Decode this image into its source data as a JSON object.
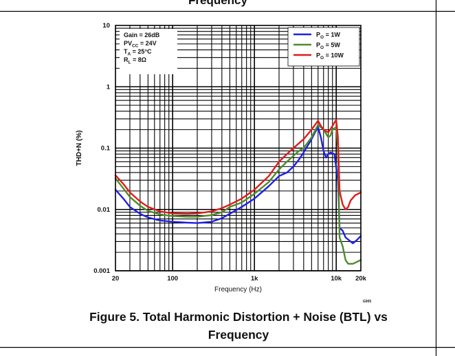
{
  "page": {
    "top_caption": "Frequency",
    "figure_caption_line1": "Figure 5. Total Harmonic Distortion + Noise (BTL) vs",
    "figure_caption_line2": "Frequency"
  },
  "chart_data": {
    "type": "line",
    "title": "",
    "xlabel": "Frequency (Hz)",
    "ylabel": "THD+N (%)",
    "xscale": "log",
    "yscale": "log",
    "xlim": [
      20,
      20000
    ],
    "ylim": [
      0.001,
      10
    ],
    "grid": true,
    "legend_position": "top-right",
    "x_ticks": [
      {
        "value": 20,
        "label": "20"
      },
      {
        "value": 100,
        "label": "100"
      },
      {
        "value": 1000,
        "label": "1k"
      },
      {
        "value": 10000,
        "label": "10k"
      },
      {
        "value": 20000,
        "label": "20k"
      }
    ],
    "y_ticks": [
      {
        "value": 0.001,
        "label": "0.001"
      },
      {
        "value": 0.01,
        "label": "0.01"
      },
      {
        "value": 0.1,
        "label": "0.1"
      },
      {
        "value": 1,
        "label": "1"
      },
      {
        "value": 10,
        "label": "10"
      }
    ],
    "conditions": [
      {
        "main": "Gain = 26dB",
        "sub": "",
        "rest": ""
      },
      {
        "main": "PV",
        "sub": "CC",
        "rest": " = 24V"
      },
      {
        "main": "T",
        "sub": "A",
        "rest": " = 25°C"
      },
      {
        "main": "R",
        "sub": "L",
        "rest": " = 8Ω"
      }
    ],
    "series": [
      {
        "name_main": "P",
        "name_sub": "O",
        "name_rest": " = 1W",
        "color": "#1f1fe6",
        "points": [
          [
            20,
            0.021
          ],
          [
            25,
            0.015
          ],
          [
            30,
            0.011
          ],
          [
            40,
            0.0085
          ],
          [
            50,
            0.0074
          ],
          [
            70,
            0.0066
          ],
          [
            100,
            0.0063
          ],
          [
            150,
            0.0061
          ],
          [
            200,
            0.006
          ],
          [
            300,
            0.0063
          ],
          [
            400,
            0.0072
          ],
          [
            500,
            0.0085
          ],
          [
            700,
            0.011
          ],
          [
            1000,
            0.015
          ],
          [
            1500,
            0.024
          ],
          [
            2000,
            0.035
          ],
          [
            2500,
            0.04
          ],
          [
            3000,
            0.05
          ],
          [
            3500,
            0.065
          ],
          [
            4000,
            0.085
          ],
          [
            5000,
            0.14
          ],
          [
            5500,
            0.18
          ],
          [
            6000,
            0.22
          ],
          [
            6500,
            0.15
          ],
          [
            7000,
            0.09
          ],
          [
            7500,
            0.07
          ],
          [
            8000,
            0.08
          ],
          [
            8500,
            0.085
          ],
          [
            9500,
            0.08
          ],
          [
            10500,
            0.03
          ],
          [
            11000,
            0.005
          ],
          [
            12000,
            0.0045
          ],
          [
            13000,
            0.0035
          ],
          [
            15000,
            0.003
          ],
          [
            16000,
            0.0028
          ],
          [
            18000,
            0.0032
          ],
          [
            20000,
            0.0037
          ]
        ]
      },
      {
        "name_main": "P",
        "name_sub": "O",
        "name_rest": " = 5W",
        "color": "#4e8a2a",
        "points": [
          [
            20,
            0.032
          ],
          [
            25,
            0.022
          ],
          [
            30,
            0.016
          ],
          [
            40,
            0.0115
          ],
          [
            50,
            0.0095
          ],
          [
            70,
            0.0083
          ],
          [
            100,
            0.0078
          ],
          [
            150,
            0.0076
          ],
          [
            200,
            0.0076
          ],
          [
            300,
            0.0081
          ],
          [
            400,
            0.009
          ],
          [
            500,
            0.011
          ],
          [
            700,
            0.013
          ],
          [
            1000,
            0.018
          ],
          [
            1500,
            0.028
          ],
          [
            2000,
            0.045
          ],
          [
            2500,
            0.06
          ],
          [
            3000,
            0.075
          ],
          [
            3500,
            0.09
          ],
          [
            4000,
            0.1
          ],
          [
            5000,
            0.15
          ],
          [
            6000,
            0.24
          ],
          [
            7000,
            0.2
          ],
          [
            8000,
            0.15
          ],
          [
            8500,
            0.16
          ],
          [
            9000,
            0.2
          ],
          [
            10000,
            0.22
          ],
          [
            10500,
            0.1
          ],
          [
            11000,
            0.0035
          ],
          [
            12000,
            0.0025
          ],
          [
            13000,
            0.0015
          ],
          [
            14000,
            0.0013
          ],
          [
            16000,
            0.0013
          ],
          [
            20000,
            0.0015
          ]
        ]
      },
      {
        "name_main": "P",
        "name_sub": "O",
        "name_rest": " = 10W",
        "color": "#e01b1b",
        "points": [
          [
            20,
            0.036
          ],
          [
            25,
            0.026
          ],
          [
            30,
            0.019
          ],
          [
            40,
            0.0135
          ],
          [
            50,
            0.011
          ],
          [
            70,
            0.0093
          ],
          [
            100,
            0.0086
          ],
          [
            150,
            0.0085
          ],
          [
            200,
            0.0086
          ],
          [
            300,
            0.0093
          ],
          [
            400,
            0.0105
          ],
          [
            500,
            0.012
          ],
          [
            700,
            0.015
          ],
          [
            1000,
            0.021
          ],
          [
            1500,
            0.035
          ],
          [
            2000,
            0.06
          ],
          [
            2500,
            0.08
          ],
          [
            3000,
            0.1
          ],
          [
            3500,
            0.12
          ],
          [
            4000,
            0.14
          ],
          [
            5000,
            0.2
          ],
          [
            6000,
            0.28
          ],
          [
            6500,
            0.23
          ],
          [
            7000,
            0.2
          ],
          [
            8000,
            0.18
          ],
          [
            9000,
            0.23
          ],
          [
            10000,
            0.29
          ],
          [
            10500,
            0.15
          ],
          [
            11000,
            0.02
          ],
          [
            12000,
            0.012
          ],
          [
            13000,
            0.01
          ],
          [
            14000,
            0.011
          ],
          [
            15000,
            0.014
          ],
          [
            17000,
            0.017
          ],
          [
            20000,
            0.019
          ]
        ]
      }
    ],
    "footnote": "G005"
  }
}
